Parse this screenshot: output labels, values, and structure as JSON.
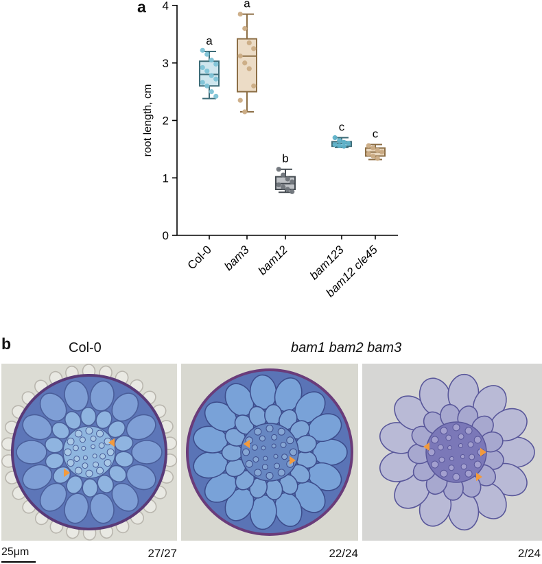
{
  "panel_a": {
    "letter": "a",
    "chart_data": {
      "type": "box",
      "ylabel": "root length, cm",
      "xlabel": "",
      "ylim": [
        0,
        4
      ],
      "yticks": [
        0,
        1,
        2,
        3,
        4
      ],
      "grid": false,
      "categories": [
        {
          "label": "Col-0",
          "italic": false,
          "letter": "a",
          "color": "#7ec3d6",
          "fill": "#cfe6ee",
          "stroke": "#3d6c78",
          "min": 2.38,
          "q1": 2.6,
          "median": 2.8,
          "q3": 3.03,
          "max": 3.2,
          "points": [
            3.22,
            3.15,
            3.05,
            2.98,
            2.92,
            2.86,
            2.78,
            2.72,
            2.66,
            2.6,
            2.5,
            2.42
          ]
        },
        {
          "label": "bam3",
          "italic": true,
          "letter": "a",
          "color": "#cbac85",
          "fill": "#ecdcc6",
          "stroke": "#8c6e45",
          "min": 2.15,
          "q1": 2.5,
          "median": 3.12,
          "q3": 3.42,
          "max": 3.85,
          "points": [
            3.85,
            3.6,
            3.35,
            3.25,
            3.12,
            3.0,
            2.9,
            2.6,
            2.35,
            2.15
          ]
        },
        {
          "label": "bam12",
          "italic": true,
          "letter": "b",
          "color": "#6f747a",
          "fill": "#bfc2c6",
          "stroke": "#444a50",
          "min": 0.75,
          "q1": 0.8,
          "median": 0.9,
          "q3": 1.02,
          "max": 1.15,
          "points": [
            1.15,
            1.05,
            0.98,
            0.93,
            0.88,
            0.84,
            0.8,
            0.76
          ]
        },
        {
          "label": "bam123",
          "italic": true,
          "letter": "c",
          "color": "#5fb2c9",
          "fill": "#b7dbe6",
          "stroke": "#3d6c78",
          "min": 1.53,
          "q1": 1.55,
          "median": 1.6,
          "q3": 1.63,
          "max": 1.7,
          "points": [
            1.7,
            1.65,
            1.62,
            1.6,
            1.58,
            1.56,
            1.55
          ]
        },
        {
          "label": "bam12 cle45",
          "italic": true,
          "letter": "c",
          "color": "#cbac85",
          "fill": "#e8d6bd",
          "stroke": "#8c6e45",
          "min": 1.32,
          "q1": 1.38,
          "median": 1.45,
          "q3": 1.52,
          "max": 1.58,
          "points": [
            1.56,
            1.52,
            1.48,
            1.45,
            1.42,
            1.38,
            1.34
          ]
        }
      ]
    }
  },
  "panel_b": {
    "letter": "b",
    "title_left": "Col-0",
    "title_right": "bam1 bam2 bam3",
    "counts": [
      "27/27",
      "22/24",
      "2/24"
    ],
    "scale_bar": "25μm",
    "arrow_color": "#f39a3c"
  }
}
